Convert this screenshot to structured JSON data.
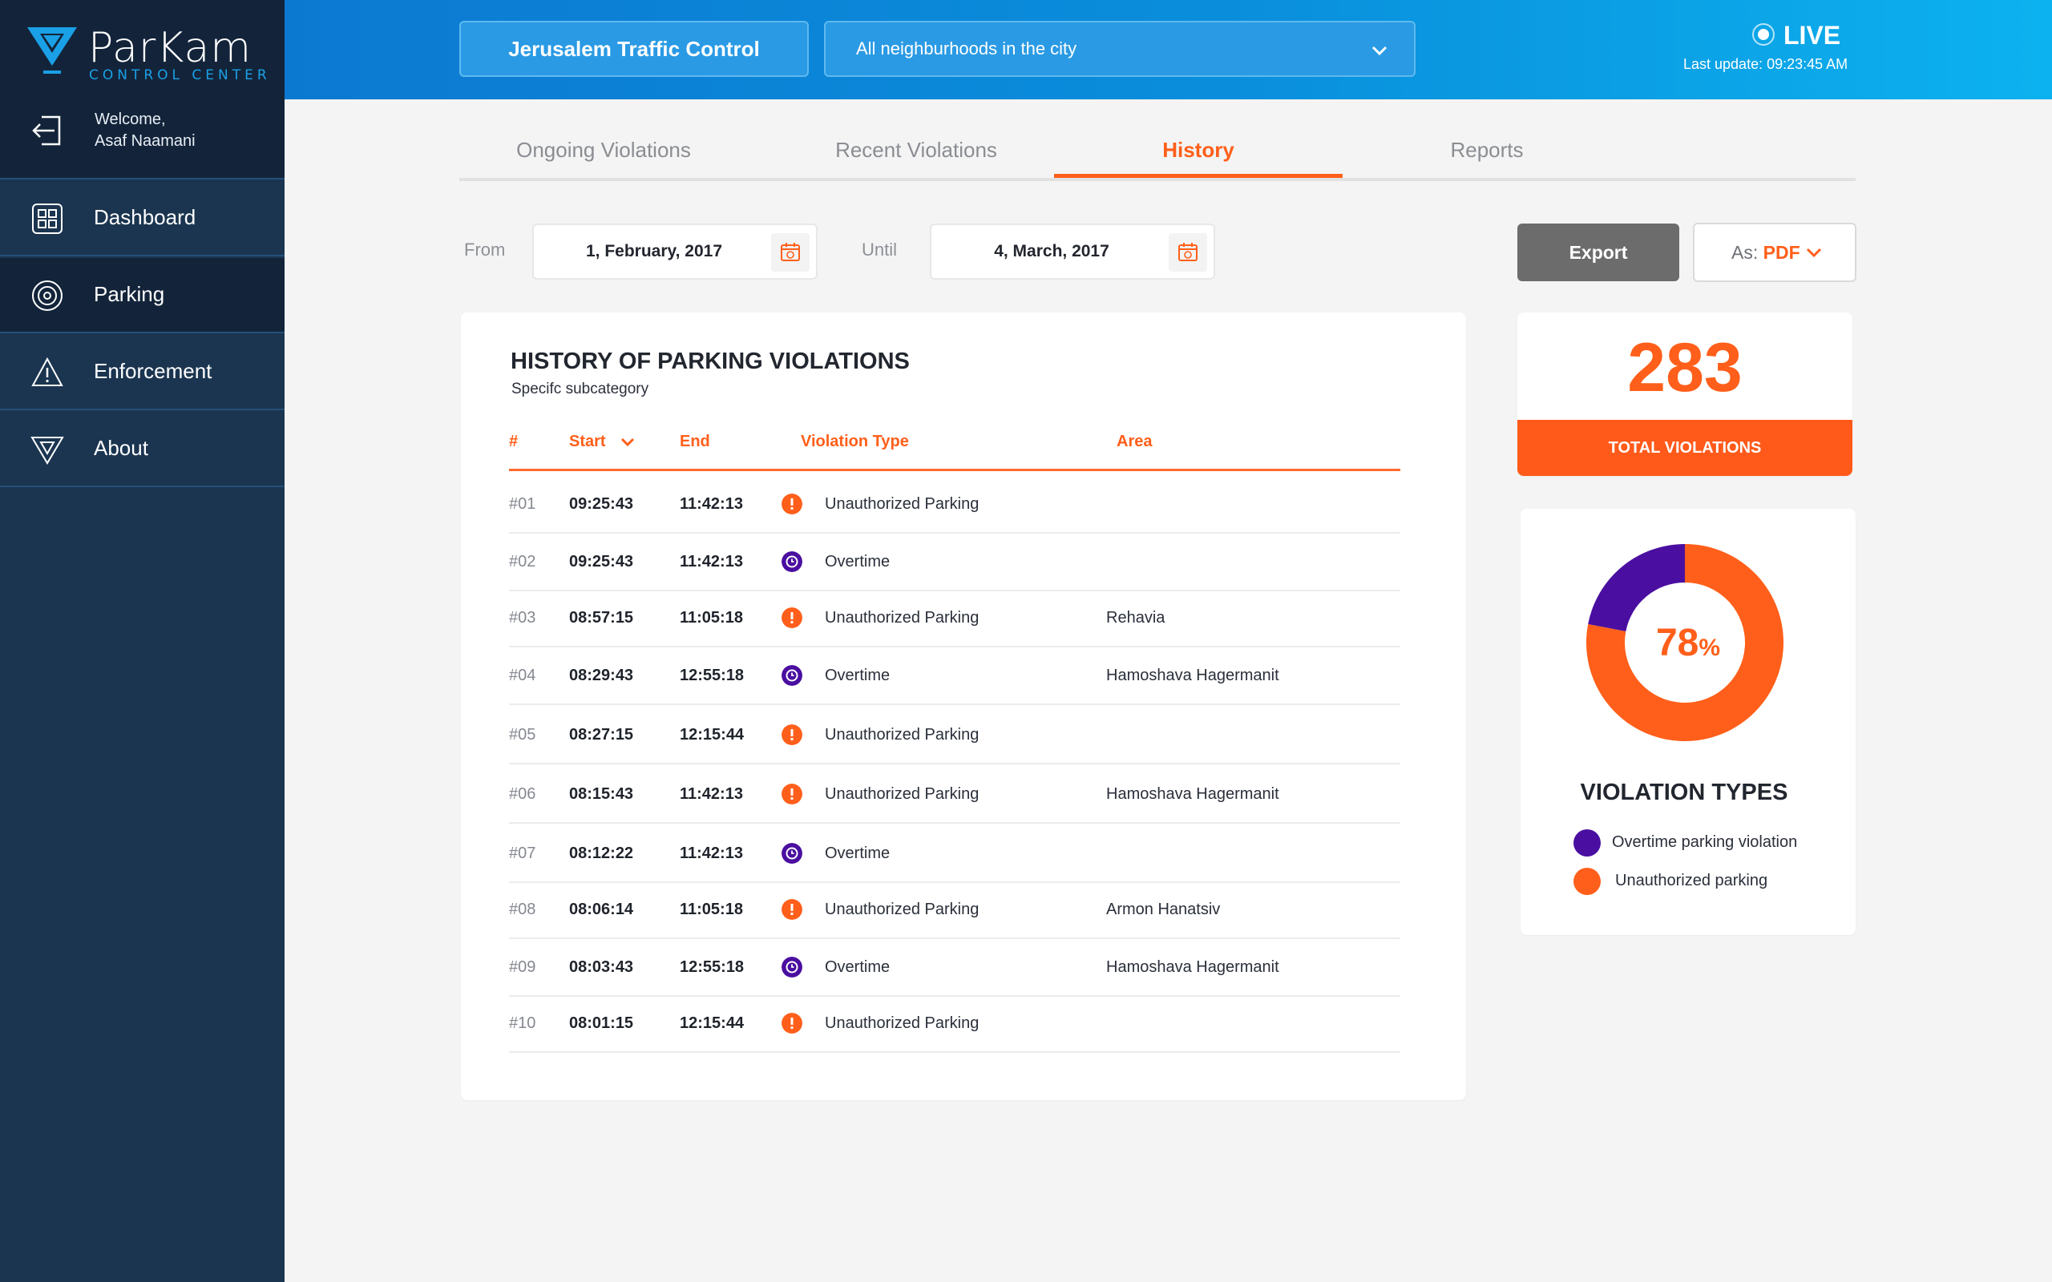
{
  "brand": {
    "name": "ParKam",
    "subtitle": "CONTROL CENTER"
  },
  "user": {
    "welcome": "Welcome,",
    "name": "Asaf Naamani"
  },
  "sidebar": {
    "items": [
      {
        "label": "Dashboard",
        "icon": "dashboard-grid-icon"
      },
      {
        "label": "Parking",
        "icon": "target-icon"
      },
      {
        "label": "Enforcement",
        "icon": "warning-triangle-icon"
      },
      {
        "label": "About",
        "icon": "logo-triangle-icon"
      }
    ]
  },
  "header": {
    "city": "Jerusalem Traffic Control",
    "neighbourhood": "All neighburhoods in the city",
    "live_label": "LIVE",
    "last_update": "Last update:  09:23:45 AM"
  },
  "tabs": [
    {
      "label": "Ongoing Violations"
    },
    {
      "label": "Recent Violations"
    },
    {
      "label": "History"
    },
    {
      "label": "Reports"
    }
  ],
  "filters": {
    "from_label": "From",
    "from_value": "1, February, 2017",
    "until_label": "Until",
    "until_value": "4, March, 2017",
    "export_label": "Export",
    "format_prefix": "As: ",
    "format_value": "PDF"
  },
  "history": {
    "title": "HISTORY OF PARKING VIOLATIONS",
    "subtitle": "Specifc subcategory",
    "columns": {
      "num": "#",
      "start": "Start",
      "end": "End",
      "type": "Violation Type",
      "area": "Area"
    },
    "rows": [
      {
        "num": "#01",
        "start": "09:25:43",
        "end": "11:42:13",
        "type": "Unauthorized Parking",
        "kind": "unauthorized",
        "area": ""
      },
      {
        "num": "#02",
        "start": "09:25:43",
        "end": "11:42:13",
        "type": "Overtime",
        "kind": "overtime",
        "area": ""
      },
      {
        "num": "#03",
        "start": "08:57:15",
        "end": "11:05:18",
        "type": "Unauthorized Parking",
        "kind": "unauthorized",
        "area": "Rehavia"
      },
      {
        "num": "#04",
        "start": "08:29:43",
        "end": "12:55:18",
        "type": "Overtime",
        "kind": "overtime",
        "area": "Hamoshava Hagermanit"
      },
      {
        "num": "#05",
        "start": "08:27:15",
        "end": "12:15:44",
        "type": "Unauthorized Parking",
        "kind": "unauthorized",
        "area": ""
      },
      {
        "num": "#06",
        "start": "08:15:43",
        "end": "11:42:13",
        "type": "Unauthorized Parking",
        "kind": "unauthorized",
        "area": "Hamoshava Hagermanit"
      },
      {
        "num": "#07",
        "start": "08:12:22",
        "end": "11:42:13",
        "type": "Overtime",
        "kind": "overtime",
        "area": ""
      },
      {
        "num": "#08",
        "start": "08:06:14",
        "end": "11:05:18",
        "type": "Unauthorized Parking",
        "kind": "unauthorized",
        "area": "Armon Hanatsiv"
      },
      {
        "num": "#09",
        "start": "08:03:43",
        "end": "12:55:18",
        "type": "Overtime",
        "kind": "overtime",
        "area": "Hamoshava Hagermanit"
      },
      {
        "num": "#10",
        "start": "08:01:15",
        "end": "12:15:44",
        "type": "Unauthorized Parking",
        "kind": "unauthorized",
        "area": ""
      }
    ]
  },
  "totals": {
    "count": "283",
    "label": "TOTAL VIOLATIONS"
  },
  "chart_data": {
    "type": "pie",
    "title": "VIOLATION TYPES",
    "center_label": "78",
    "center_unit": "%",
    "categories": [
      "Overtime parking violation",
      "Unauthorized parking"
    ],
    "values": [
      22,
      78
    ],
    "colors": [
      "#4a0fa0",
      "#ff5f1a"
    ]
  },
  "colors": {
    "accent": "#ff5f1a",
    "overtime": "#4a0fa0",
    "sidebar": "#1b3550",
    "header": "#0c79d1"
  }
}
